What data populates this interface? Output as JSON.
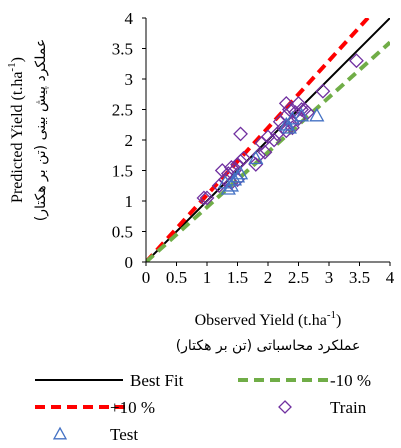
{
  "chart_data": {
    "type": "scatter",
    "xlim": [
      0,
      4
    ],
    "ylim": [
      0,
      4
    ],
    "x_ticks": [
      "0",
      "0.5",
      "1",
      "1.5",
      "2",
      "2.5",
      "3",
      "3.5",
      "4"
    ],
    "y_ticks": [
      "0",
      "0.5",
      "1",
      "1.5",
      "2",
      "2.5",
      "3",
      "3.5",
      "4"
    ],
    "xlabel": {
      "main": "Observed Yield (t.ha",
      "sup": "-1",
      "tail": ")",
      "translation": "عملکرد محاسباتی (تن بر هکتار)"
    },
    "ylabel": {
      "main": "Predicted Yield (t.ha",
      "sup": "-1",
      "tail": ")",
      "translation": "عملکرد پیش بینی (تن بر هکتار)"
    },
    "grid": false,
    "legend_position": "bottom",
    "lines": [
      {
        "name": "Best Fit",
        "slope": 1.0,
        "color": "#000000",
        "style": "solid"
      },
      {
        "name": "+10 %",
        "slope": 1.1,
        "color": "#ff0000",
        "style": "dashed"
      },
      {
        "name": "-10 %",
        "slope": 0.9,
        "color": "#70ad47",
        "style": "dashed"
      }
    ],
    "series": [
      {
        "name": "Train",
        "marker": "diamond",
        "color": "#7030a0",
        "points": [
          [
            0.95,
            1.05
          ],
          [
            1.0,
            1.05
          ],
          [
            1.2,
            1.25
          ],
          [
            1.25,
            1.5
          ],
          [
            1.3,
            1.35
          ],
          [
            1.35,
            1.45
          ],
          [
            1.4,
            1.55
          ],
          [
            1.45,
            1.5
          ],
          [
            1.5,
            1.6
          ],
          [
            1.55,
            1.65
          ],
          [
            1.6,
            1.7
          ],
          [
            1.4,
            1.3
          ],
          [
            1.5,
            1.35
          ],
          [
            1.55,
            2.1
          ],
          [
            1.8,
            1.6
          ],
          [
            1.85,
            1.75
          ],
          [
            1.9,
            1.95
          ],
          [
            1.95,
            1.8
          ],
          [
            2.0,
            2.05
          ],
          [
            2.1,
            2.0
          ],
          [
            2.15,
            2.1
          ],
          [
            2.2,
            2.3
          ],
          [
            2.25,
            2.2
          ],
          [
            2.3,
            2.4
          ],
          [
            2.3,
            2.15
          ],
          [
            2.35,
            2.5
          ],
          [
            2.4,
            2.3
          ],
          [
            2.4,
            2.2
          ],
          [
            2.45,
            2.45
          ],
          [
            2.5,
            2.35
          ],
          [
            2.5,
            2.6
          ],
          [
            2.55,
            2.5
          ],
          [
            2.6,
            2.5
          ],
          [
            2.65,
            2.45
          ],
          [
            2.3,
            2.6
          ],
          [
            2.9,
            2.8
          ],
          [
            3.45,
            3.3
          ]
        ]
      },
      {
        "name": "Test",
        "marker": "triangle",
        "color": "#4472c4",
        "points": [
          [
            1.3,
            1.3
          ],
          [
            1.35,
            1.2
          ],
          [
            1.4,
            1.25
          ],
          [
            1.45,
            1.35
          ],
          [
            1.5,
            1.4
          ],
          [
            1.55,
            1.45
          ],
          [
            1.8,
            1.7
          ],
          [
            2.3,
            2.25
          ],
          [
            2.35,
            2.2
          ],
          [
            2.4,
            2.35
          ],
          [
            2.55,
            2.4
          ],
          [
            2.8,
            2.4
          ]
        ]
      }
    ]
  }
}
